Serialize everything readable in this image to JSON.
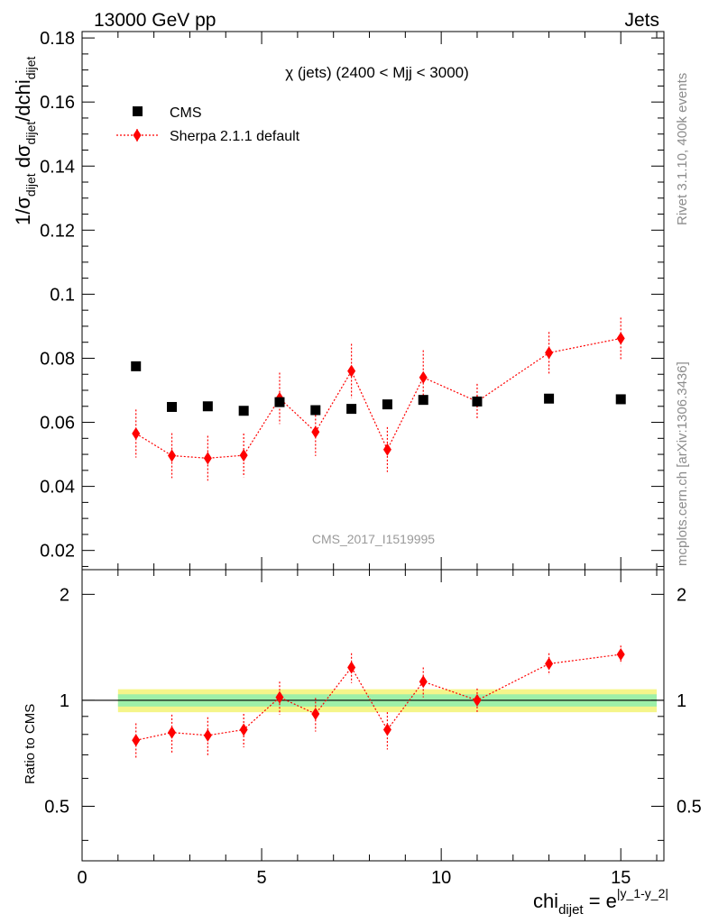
{
  "header": {
    "left": "13000 GeV pp",
    "right": "Jets"
  },
  "side_labels": {
    "rivet": "Rivet 3.1.10,  400k events",
    "mcplots": "mcplots.cern.ch [arXiv:1306.3436]"
  },
  "chart_data": [
    {
      "type": "scatter",
      "panel": "main",
      "title": "χ (jets) (2400 < Mjj < 3000)",
      "watermark": "CMS_2017_I1519995",
      "ylabel": "1/σ_dijet dσ_dijet/dchi_dijet",
      "xlim": [
        0,
        16.2
      ],
      "ylim": [
        0.014,
        0.182
      ],
      "yticks": [
        0.02,
        0.04,
        0.06,
        0.08,
        0.1,
        0.12,
        0.14,
        0.16,
        0.18
      ],
      "ytick_labels": [
        "0.02",
        "0.04",
        "0.06",
        "0.08",
        "0.1",
        "0.12",
        "0.14",
        "0.16",
        "0.18"
      ],
      "legend_position": "top-left",
      "series": [
        {
          "name": "CMS",
          "marker": "square",
          "color": "#000000",
          "x": [
            1.5,
            2.5,
            3.5,
            4.5,
            5.5,
            6.5,
            7.5,
            8.5,
            9.5,
            11.0,
            13.0,
            15.0
          ],
          "y": [
            0.0775,
            0.0648,
            0.065,
            0.0636,
            0.0663,
            0.0638,
            0.0642,
            0.0656,
            0.067,
            0.0665,
            0.0674,
            0.0672
          ]
        },
        {
          "name": "Sherpa 2.1.1 default",
          "marker": "diamond",
          "line": "dotted",
          "color": "#ff0000",
          "x": [
            1.5,
            2.5,
            3.5,
            4.5,
            5.5,
            6.5,
            7.5,
            8.5,
            9.5,
            11.0,
            13.0,
            15.0
          ],
          "y": [
            0.0565,
            0.0496,
            0.0488,
            0.0497,
            0.0675,
            0.057,
            0.076,
            0.0515,
            0.074,
            0.0665,
            0.0817,
            0.0862
          ],
          "yerr": [
            0.0075,
            0.007,
            0.007,
            0.0068,
            0.008,
            0.0075,
            0.0085,
            0.007,
            0.0085,
            0.0055,
            0.0065,
            0.0065
          ]
        }
      ]
    },
    {
      "type": "scatter",
      "panel": "ratio",
      "ylabel": "Ratio to CMS",
      "xlabel": "chi_dijet = e^|y_1-y_2|",
      "xlim": [
        0,
        16.2
      ],
      "ylim": [
        0.35,
        2.35
      ],
      "yticks": [
        0.5,
        1,
        2
      ],
      "ytick_labels": [
        "0.5",
        "1",
        "2"
      ],
      "xticks": [
        0,
        5,
        10,
        15
      ],
      "xtick_labels": [
        "0",
        "5",
        "10",
        "15"
      ],
      "band_range": [
        1.0,
        16.0
      ],
      "band_inner": 0.04,
      "band_outer": 0.075,
      "series": [
        {
          "name": "Sherpa 2.1.1 default",
          "color": "#ff0000",
          "x": [
            1.5,
            2.5,
            3.5,
            4.5,
            5.5,
            6.5,
            7.5,
            8.5,
            9.5,
            11.0,
            13.0,
            15.0
          ],
          "y": [
            0.77,
            0.81,
            0.795,
            0.825,
            1.02,
            0.915,
            1.24,
            0.825,
            1.13,
            1.0,
            1.27,
            1.35
          ],
          "yerr": [
            0.09,
            0.1,
            0.1,
            0.09,
            0.11,
            0.1,
            0.12,
            0.1,
            0.11,
            0.08,
            0.09,
            0.08
          ]
        }
      ]
    }
  ]
}
